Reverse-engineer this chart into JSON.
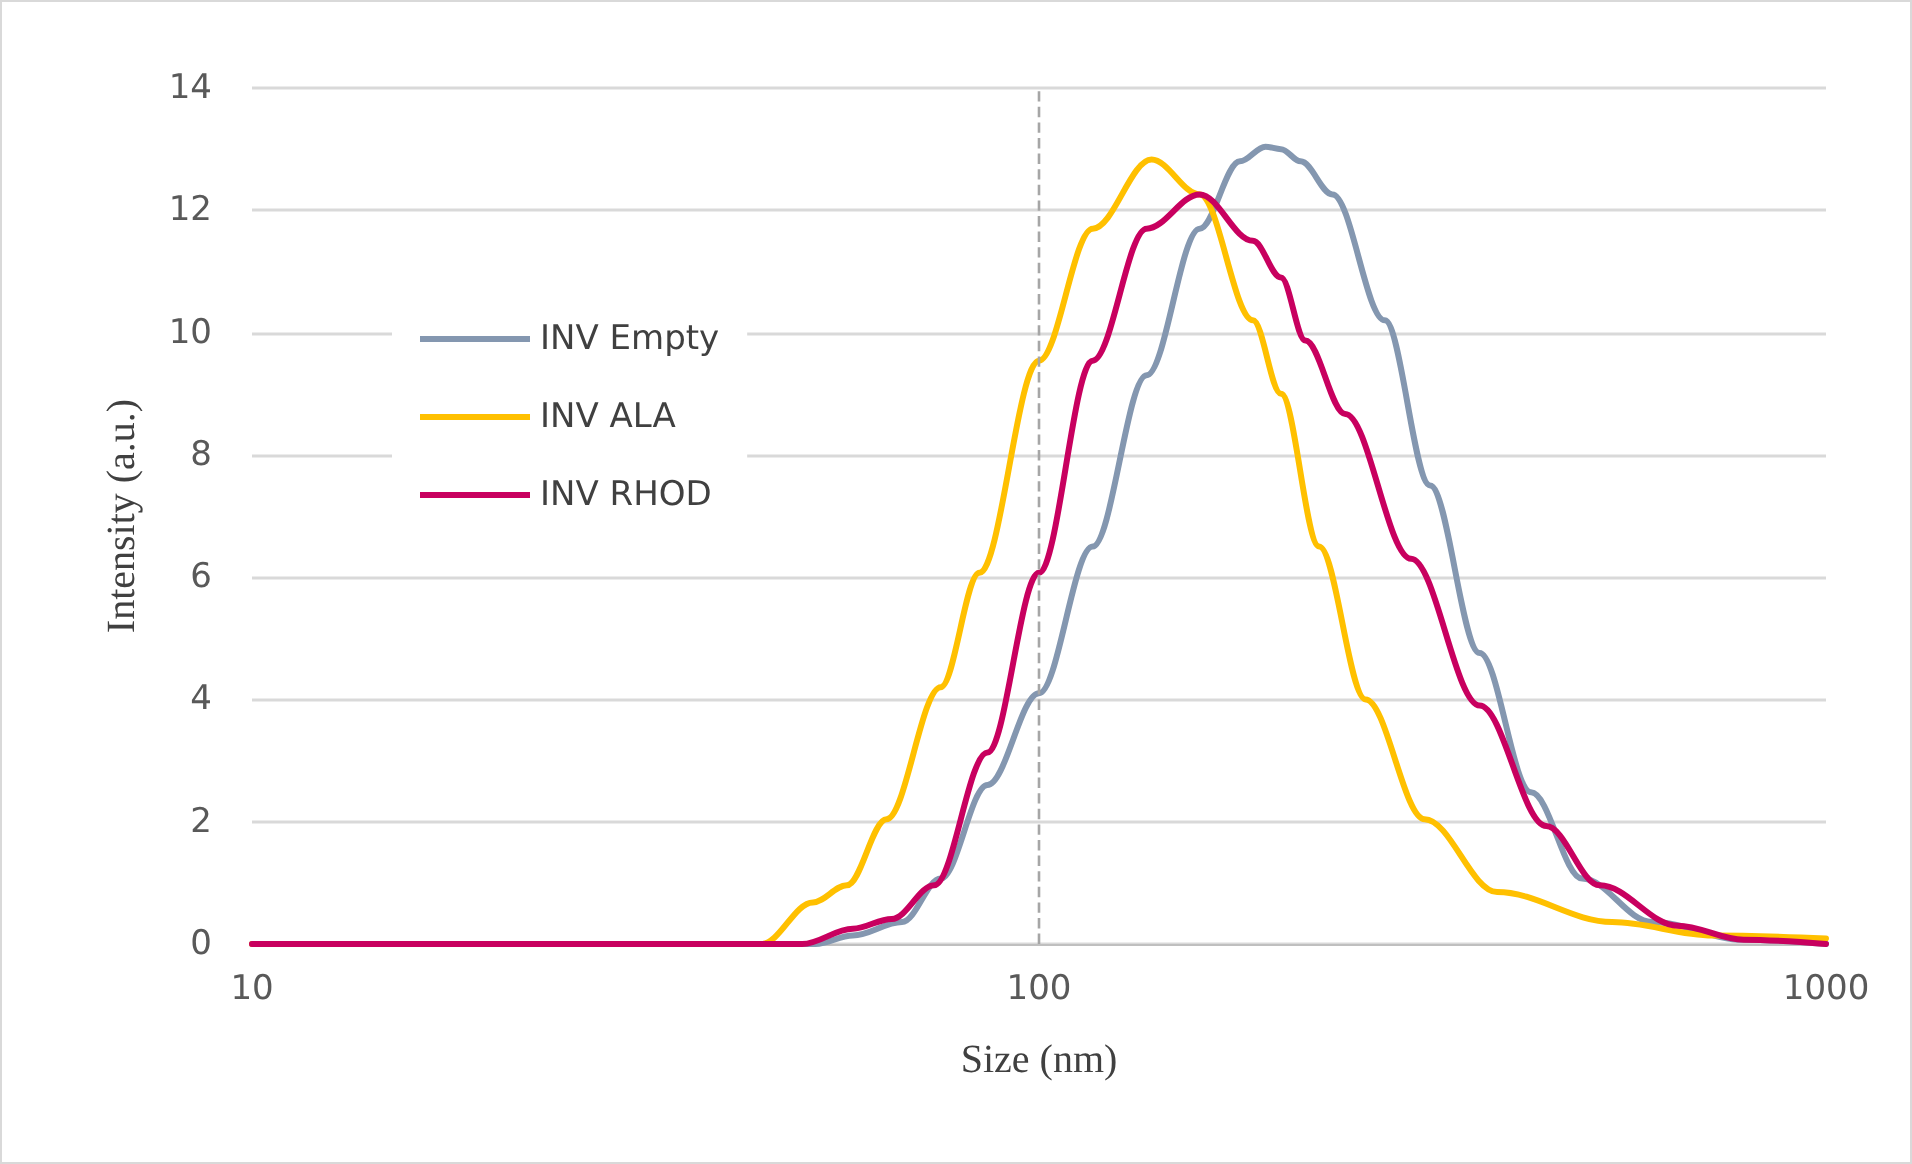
{
  "chart_data": {
    "type": "line",
    "xlabel": "Size (nm)",
    "ylabel": "Intensity (a.u.)",
    "log": "x",
    "xlim": [
      10,
      1000
    ],
    "xticks": [
      10,
      100,
      1000
    ],
    "ylim": [
      0,
      14
    ],
    "yticks": [
      0,
      2,
      4,
      6,
      8,
      10,
      12,
      14
    ],
    "grid": "y",
    "legend": "left",
    "marker": "none",
    "line_style": "solid",
    "ref_lines": [
      {
        "axis": "x",
        "value": 100,
        "color": "#a6a6a6",
        "line_style": "dashed"
      }
    ],
    "series": [
      {
        "name": "INV Empty",
        "color": "#8497b0",
        "x": [
          10,
          40,
          52,
          58,
          67,
          75,
          86,
          100,
          117,
          137,
          160,
          180,
          194,
          203,
          215,
          236,
          275,
          314,
          363,
          422,
          490,
          601,
          786,
          1000
        ],
        "values": [
          0,
          0,
          0,
          0.14,
          0.36,
          1.07,
          2.6,
          4.1,
          6.5,
          9.3,
          11.7,
          12.8,
          13.04,
          13.0,
          12.8,
          12.26,
          10.2,
          7.5,
          4.76,
          2.48,
          1.07,
          0.36,
          0.07,
          0
        ]
      },
      {
        "name": "INV ALA",
        "color": "#ffc000",
        "x": [
          10,
          40,
          44.4,
          51.6,
          57,
          64,
          75,
          84,
          100,
          117,
          139,
          160,
          187,
          203,
          227,
          260,
          309,
          382,
          535,
          718,
          1000
        ],
        "values": [
          0,
          0,
          0,
          0.68,
          0.96,
          2.04,
          4.2,
          6.07,
          9.54,
          11.7,
          12.83,
          12.26,
          10.2,
          9.0,
          6.5,
          4.0,
          2.04,
          0.85,
          0.36,
          0.14,
          0.09
        ]
      },
      {
        "name": "INV RHOD",
        "color": "#c8005f",
        "x": [
          10,
          40,
          50,
          58,
          65,
          73.6,
          86,
          100,
          117,
          137,
          160,
          187,
          203,
          218,
          245,
          297,
          363,
          441,
          516,
          648,
          786,
          1000
        ],
        "values": [
          0,
          0,
          0,
          0.25,
          0.41,
          0.96,
          3.13,
          6.07,
          9.54,
          11.7,
          12.26,
          11.5,
          10.9,
          9.87,
          8.67,
          6.3,
          3.9,
          1.93,
          0.96,
          0.3,
          0.07,
          0
        ]
      }
    ]
  }
}
